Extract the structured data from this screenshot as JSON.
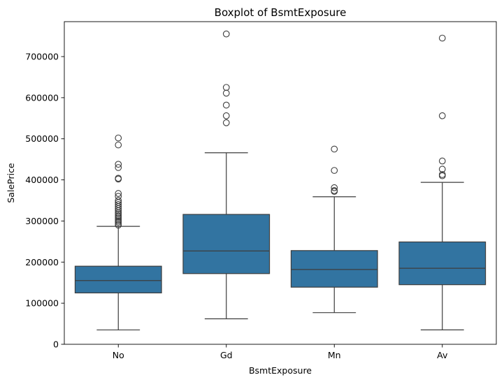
{
  "chart_data": {
    "type": "box",
    "title": "Boxplot of BsmtExposure",
    "xlabel": "BsmtExposure",
    "ylabel": "SalePrice",
    "ylim": [
      0,
      785000
    ],
    "yticks": [
      0,
      100000,
      200000,
      300000,
      400000,
      500000,
      600000,
      700000
    ],
    "ytick_labels": [
      "0",
      "100000",
      "200000",
      "300000",
      "400000",
      "500000",
      "600000",
      "700000"
    ],
    "categories": [
      "No",
      "Gd",
      "Mn",
      "Av"
    ],
    "box_color": "#3274a1",
    "line_color": "#3d3d3d",
    "grid": false,
    "boxes": [
      {
        "category": "No",
        "whisker_low": 34900,
        "q1": 125000,
        "median": 155000,
        "q3": 190000,
        "whisker_high": 287000,
        "outliers": [
          290000,
          293000,
          297000,
          300000,
          303000,
          307000,
          310000,
          313000,
          317000,
          320000,
          325000,
          330000,
          335000,
          340000,
          345000,
          350000,
          360000,
          367000,
          402000,
          404000,
          430000,
          438000,
          485000,
          502000
        ]
      },
      {
        "category": "Gd",
        "whisker_low": 62000,
        "q1": 172000,
        "median": 227000,
        "q3": 316000,
        "whisker_high": 466000,
        "outliers": [
          539000,
          556000,
          582000,
          611000,
          625000,
          755000
        ]
      },
      {
        "category": "Mn",
        "whisker_low": 77000,
        "q1": 139000,
        "median": 182000,
        "q3": 228000,
        "whisker_high": 359000,
        "outliers": [
          372000,
          374000,
          381000,
          423000,
          475000
        ]
      },
      {
        "category": "Av",
        "whisker_low": 35000,
        "q1": 145000,
        "median": 185000,
        "q3": 249000,
        "whisker_high": 394000,
        "outliers": [
          410000,
          413000,
          426000,
          446000,
          556000,
          745000
        ]
      }
    ]
  }
}
